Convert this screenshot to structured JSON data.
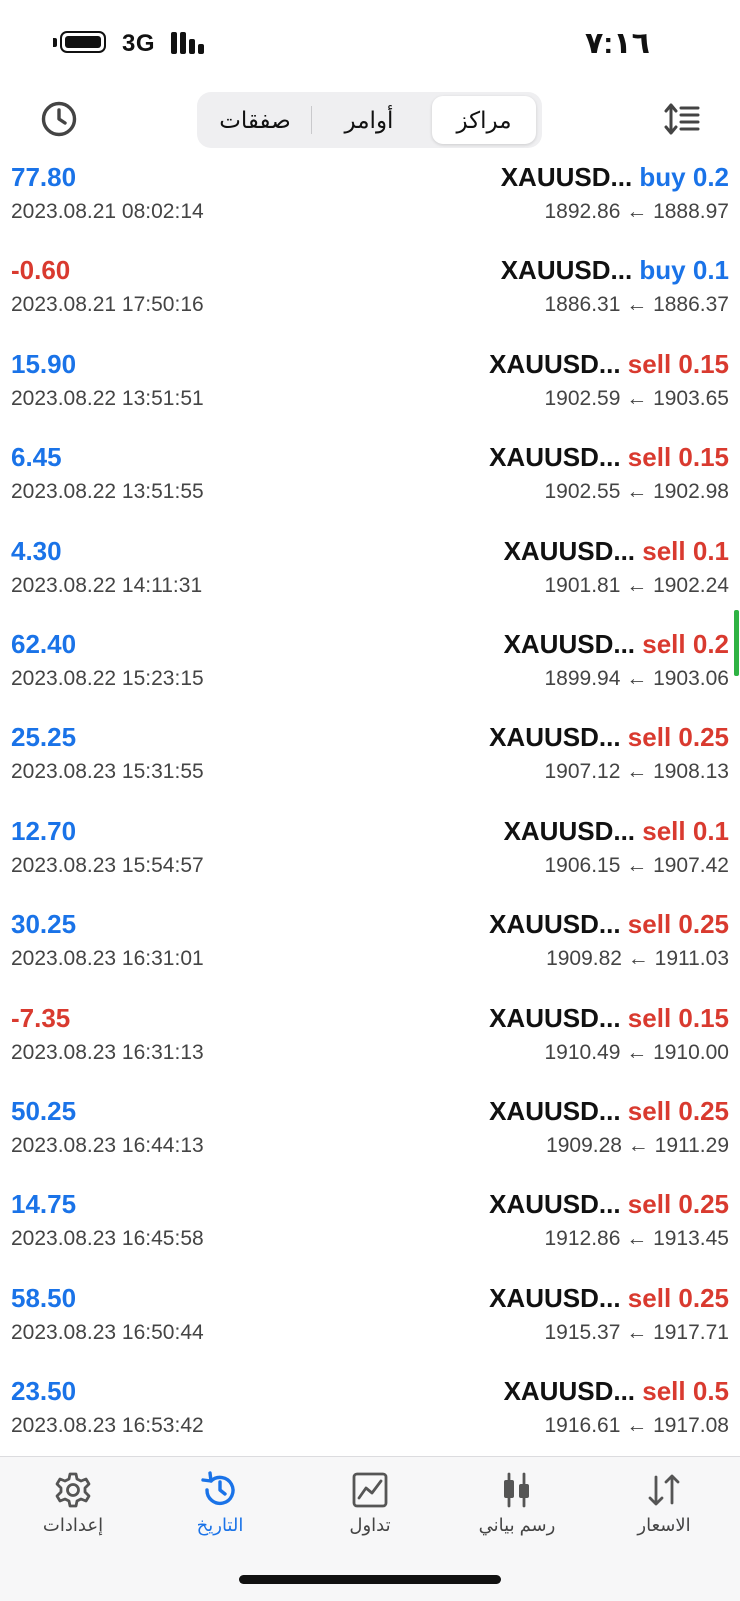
{
  "status_bar": {
    "time": "٧:١٦",
    "network": "3G"
  },
  "segmented": [
    {
      "label": "مراكز",
      "active": true
    },
    {
      "label": "أوامر",
      "active": false
    },
    {
      "label": "صفقات",
      "active": false
    }
  ],
  "rows": [
    {
      "profit": "77.80",
      "profit_sign": "pos",
      "time": "2023.08.21 08:02:14",
      "symbol": "XAUUSD...",
      "side": "buy 0.2",
      "side_type": "buy",
      "prices": "1892.86 ← 1888.97"
    },
    {
      "profit": "-0.60",
      "profit_sign": "neg",
      "time": "2023.08.21 17:50:16",
      "symbol": "XAUUSD...",
      "side": "buy 0.1",
      "side_type": "buy",
      "prices": "1886.31 ← 1886.37"
    },
    {
      "profit": "15.90",
      "profit_sign": "pos",
      "time": "2023.08.22 13:51:51",
      "symbol": "XAUUSD...",
      "side": "sell 0.15",
      "side_type": "sell",
      "prices": "1902.59 ← 1903.65"
    },
    {
      "profit": "6.45",
      "profit_sign": "pos",
      "time": "2023.08.22 13:51:55",
      "symbol": "XAUUSD...",
      "side": "sell 0.15",
      "side_type": "sell",
      "prices": "1902.55 ← 1902.98"
    },
    {
      "profit": "4.30",
      "profit_sign": "pos",
      "time": "2023.08.22 14:11:31",
      "symbol": "XAUUSD...",
      "side": "sell 0.1",
      "side_type": "sell",
      "prices": "1901.81 ← 1902.24"
    },
    {
      "profit": "62.40",
      "profit_sign": "pos",
      "time": "2023.08.22 15:23:15",
      "symbol": "XAUUSD...",
      "side": "sell 0.2",
      "side_type": "sell",
      "prices": "1899.94 ← 1903.06"
    },
    {
      "profit": "25.25",
      "profit_sign": "pos",
      "time": "2023.08.23 15:31:55",
      "symbol": "XAUUSD...",
      "side": "sell 0.25",
      "side_type": "sell",
      "prices": "1907.12 ← 1908.13"
    },
    {
      "profit": "12.70",
      "profit_sign": "pos",
      "time": "2023.08.23 15:54:57",
      "symbol": "XAUUSD...",
      "side": "sell 0.1",
      "side_type": "sell",
      "prices": "1906.15 ← 1907.42"
    },
    {
      "profit": "30.25",
      "profit_sign": "pos",
      "time": "2023.08.23 16:31:01",
      "symbol": "XAUUSD...",
      "side": "sell 0.25",
      "side_type": "sell",
      "prices": "1909.82 ← 1911.03"
    },
    {
      "profit": "-7.35",
      "profit_sign": "neg",
      "time": "2023.08.23 16:31:13",
      "symbol": "XAUUSD...",
      "side": "sell 0.15",
      "side_type": "sell",
      "prices": "1910.49 ← 1910.00"
    },
    {
      "profit": "50.25",
      "profit_sign": "pos",
      "time": "2023.08.23 16:44:13",
      "symbol": "XAUUSD...",
      "side": "sell 0.25",
      "side_type": "sell",
      "prices": "1909.28 ← 1911.29"
    },
    {
      "profit": "14.75",
      "profit_sign": "pos",
      "time": "2023.08.23 16:45:58",
      "symbol": "XAUUSD...",
      "side": "sell 0.25",
      "side_type": "sell",
      "prices": "1912.86 ← 1913.45"
    },
    {
      "profit": "58.50",
      "profit_sign": "pos",
      "time": "2023.08.23 16:50:44",
      "symbol": "XAUUSD...",
      "side": "sell 0.25",
      "side_type": "sell",
      "prices": "1915.37 ← 1917.71"
    },
    {
      "profit": "23.50",
      "profit_sign": "pos",
      "time": "2023.08.23 16:53:42",
      "symbol": "XAUUSD...",
      "side": "sell 0.5",
      "side_type": "sell",
      "prices": "1916.61 ← 1917.08"
    }
  ],
  "tabs": [
    {
      "label": "الاسعار",
      "icon": "quotes-arrows-icon",
      "active": false
    },
    {
      "label": "رسم بياني",
      "icon": "candlestick-chart-icon",
      "active": false
    },
    {
      "label": "تداول",
      "icon": "trade-chart-icon",
      "active": false
    },
    {
      "label": "التاريخ",
      "icon": "history-clock-icon",
      "active": true
    },
    {
      "label": "إعدادات",
      "icon": "settings-gear-icon",
      "active": false
    }
  ],
  "colors": {
    "positive": "#1a73e8",
    "negative": "#d93a2f",
    "accent": "#1a73e8",
    "scroll_indicator": "#2fb344"
  }
}
